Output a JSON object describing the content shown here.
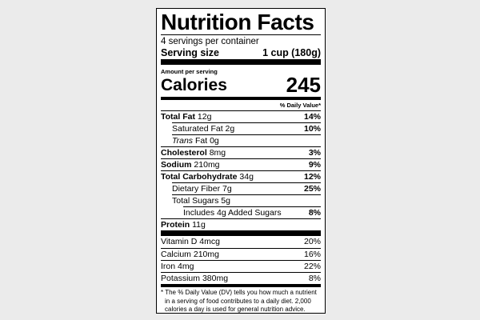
{
  "header": {
    "title": "Nutrition Facts",
    "servings": "4 servings per container",
    "serving_size_label": "Serving size",
    "serving_size_value": "1 cup (180g)"
  },
  "calories": {
    "amount_label": "Amount per serving",
    "label": "Calories",
    "value": "245"
  },
  "daily_value_header": "% Daily Value*",
  "nutrients": [
    {
      "name": "Total Fat",
      "amount": "12g",
      "dv": "14%"
    },
    {
      "name": "Saturated Fat",
      "amount": "2g",
      "dv": "10%"
    },
    {
      "name_italic": "Trans",
      "name": "Fat",
      "amount": "0g"
    },
    {
      "name": "Cholesterol",
      "amount": "8mg",
      "dv": "3%"
    },
    {
      "name": "Sodium",
      "amount": "210mg",
      "dv": "9%"
    },
    {
      "name": "Total Carbohydrate",
      "amount": "34g",
      "dv": "12%"
    },
    {
      "name": "Dietary Fiber",
      "amount": "7g",
      "dv": "25%"
    },
    {
      "name": "Total Sugars",
      "amount": "5g"
    },
    {
      "name": "Includes 4g Added Sugars",
      "dv": "8%"
    },
    {
      "name": "Protein",
      "amount": "11g"
    }
  ],
  "vitamins": [
    {
      "name": "Vitamin D",
      "amount": "4mcg",
      "dv": "20%"
    },
    {
      "name": "Calcium",
      "amount": "210mg",
      "dv": "16%"
    },
    {
      "name": "Iron",
      "amount": "4mg",
      "dv": "22%"
    },
    {
      "name": "Potassium",
      "amount": "380mg",
      "dv": "8%"
    }
  ],
  "footnote": [
    "* The % Daily Value (DV) tells you how much a nutrient",
    "in a serving of food contributes to a daily diet. 2,000",
    "calories a day is used for general nutrition advice."
  ]
}
